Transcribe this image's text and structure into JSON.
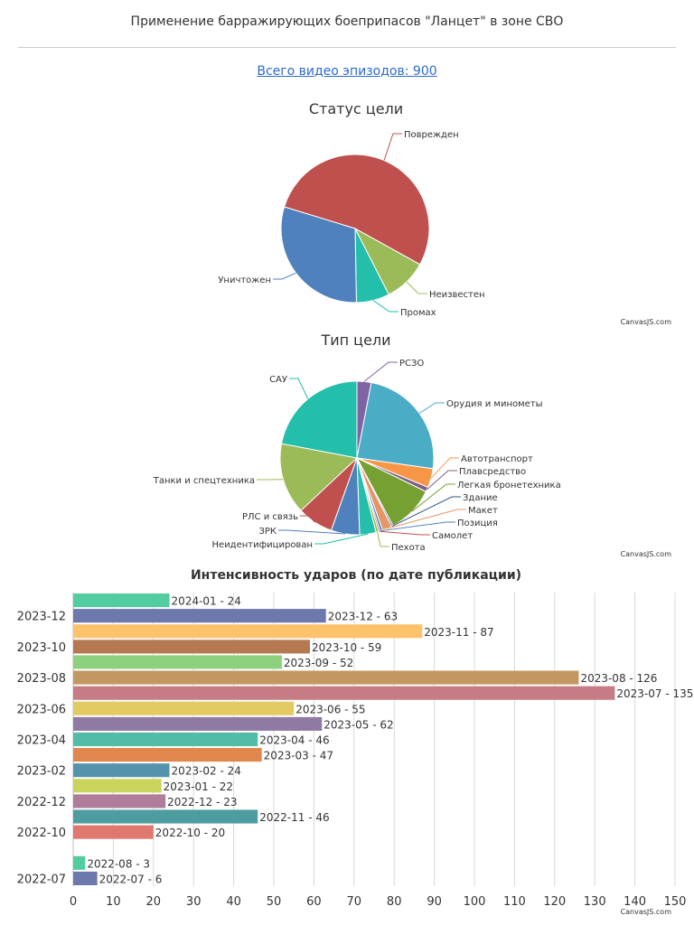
{
  "header": {
    "title": "Применение барражирующих боеприпасов \"Ланцет\" в зоне СВО",
    "total_link": "Всего видео эпизодов: 900"
  },
  "watermark": "CanvasJS.com",
  "chart_data": [
    {
      "type": "pie",
      "title": "Статус цели",
      "slices": [
        {
          "label": "Поврежден",
          "value": 480,
          "color": "#c0504e"
        },
        {
          "label": "Неизвестен",
          "value": 85,
          "color": "#9bbb58"
        },
        {
          "label": "Промах",
          "value": 65,
          "color": "#23bfaa"
        },
        {
          "label": "Уничтожен",
          "value": 270,
          "color": "#4f81bc"
        }
      ]
    },
    {
      "type": "pie",
      "title": "Тип цели",
      "slices": [
        {
          "label": "РСЗО",
          "value": 27,
          "color": "#8064a1"
        },
        {
          "label": "Орудия и минометы",
          "value": 218,
          "color": "#4aacc5"
        },
        {
          "label": "Автотранспорт",
          "value": 36,
          "color": "#f79647"
        },
        {
          "label": "Плавсредство",
          "value": 9,
          "color": "#7f6084"
        },
        {
          "label": "Легкая бронетехника",
          "value": 90,
          "color": "#77a033"
        },
        {
          "label": "Здание",
          "value": 3,
          "color": "#33558b"
        },
        {
          "label": "Макет",
          "value": 18,
          "color": "#e59566"
        },
        {
          "label": "Позиция",
          "value": 5,
          "color": "#4f81bc"
        },
        {
          "label": "Самолет",
          "value": 3,
          "color": "#c0504e"
        },
        {
          "label": "Пехота",
          "value": 5,
          "color": "#9bbb58"
        },
        {
          "label": "Неидентифицирован",
          "value": 31,
          "color": "#23bfaa"
        },
        {
          "label": "ЗРК",
          "value": 54,
          "color": "#4f81bc"
        },
        {
          "label": "РЛС и связь",
          "value": 68,
          "color": "#c0504e"
        },
        {
          "label": "Танки и спецтехника",
          "value": 135,
          "color": "#9bbb58"
        },
        {
          "label": "САУ",
          "value": 198,
          "color": "#23bfaa"
        }
      ]
    },
    {
      "type": "bar",
      "orientation": "horizontal",
      "title": "Интенсивность ударов (по дате публикации)",
      "xlim": [
        0,
        150
      ],
      "x_ticks": [
        0,
        10,
        20,
        30,
        40,
        50,
        60,
        70,
        80,
        90,
        100,
        110,
        120,
        130,
        140,
        150
      ],
      "y_tick_labels": [
        "2022-07",
        "2022-10",
        "2022-12",
        "2023-02",
        "2023-04",
        "2023-06",
        "2023-08",
        "2023-10",
        "2023-12"
      ],
      "grid": true,
      "bars": [
        {
          "label": "2022-07",
          "value": 6,
          "color": "#6d78ad"
        },
        {
          "label": "2022-08",
          "value": 3,
          "color": "#51cda0"
        },
        {
          "label": "2022-10",
          "value": 20,
          "color": "#df7970"
        },
        {
          "label": "2022-11",
          "value": 46,
          "color": "#4c9ca0"
        },
        {
          "label": "2022-12",
          "value": 23,
          "color": "#ae7d99"
        },
        {
          "label": "2023-01",
          "value": 22,
          "color": "#c9d45c"
        },
        {
          "label": "2023-02",
          "value": 24,
          "color": "#5592ad"
        },
        {
          "label": "2023-03",
          "value": 47,
          "color": "#df874d"
        },
        {
          "label": "2023-04",
          "value": 46,
          "color": "#52bca8"
        },
        {
          "label": "2023-05",
          "value": 62,
          "color": "#8e7aa3"
        },
        {
          "label": "2023-06",
          "value": 55,
          "color": "#e3cb64"
        },
        {
          "label": "2023-07",
          "value": 135,
          "color": "#c77b85"
        },
        {
          "label": "2023-08",
          "value": 126,
          "color": "#c39762"
        },
        {
          "label": "2023-09",
          "value": 52,
          "color": "#8dd17e"
        },
        {
          "label": "2023-10",
          "value": 59,
          "color": "#b57952"
        },
        {
          "label": "2023-11",
          "value": 87,
          "color": "#fcc26c"
        },
        {
          "label": "2023-12",
          "value": 63,
          "color": "#6d78ad"
        },
        {
          "label": "2024-01",
          "value": 24,
          "color": "#51cda0"
        }
      ]
    }
  ]
}
